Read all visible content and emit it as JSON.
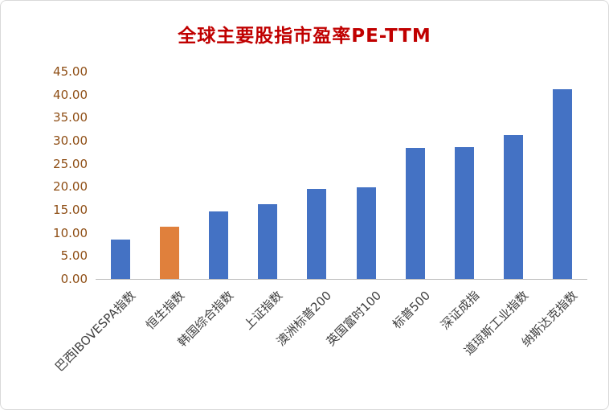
{
  "chart_data": {
    "type": "bar",
    "title": "全球主要股指市盈率PE-TTM",
    "categories": [
      "巴西IBOVESPA指数",
      "恒生指数",
      "韩国综合指数",
      "上证指数",
      "澳洲标普200",
      "英国富时100",
      "标普500",
      "深证成指",
      "道琼斯工业指数",
      "纳斯达克指数"
    ],
    "values": [
      8.5,
      11.3,
      14.7,
      16.2,
      19.5,
      19.8,
      28.4,
      28.6,
      31.2,
      41.2
    ],
    "highlight_index": 1,
    "bar_color": "#4472C4",
    "highlight_color": "#E0803C",
    "title_color": "#C00000",
    "ytick_color": "#8F4F16",
    "xlabel_color": "#3F3F3F",
    "ylim": [
      0,
      45
    ],
    "ytick_step": 5,
    "ytick_labels": [
      "0.00",
      "5.00",
      "10.00",
      "15.00",
      "20.00",
      "25.00",
      "30.00",
      "35.00",
      "40.00",
      "45.00"
    ],
    "grid": "off",
    "legend": "none"
  }
}
